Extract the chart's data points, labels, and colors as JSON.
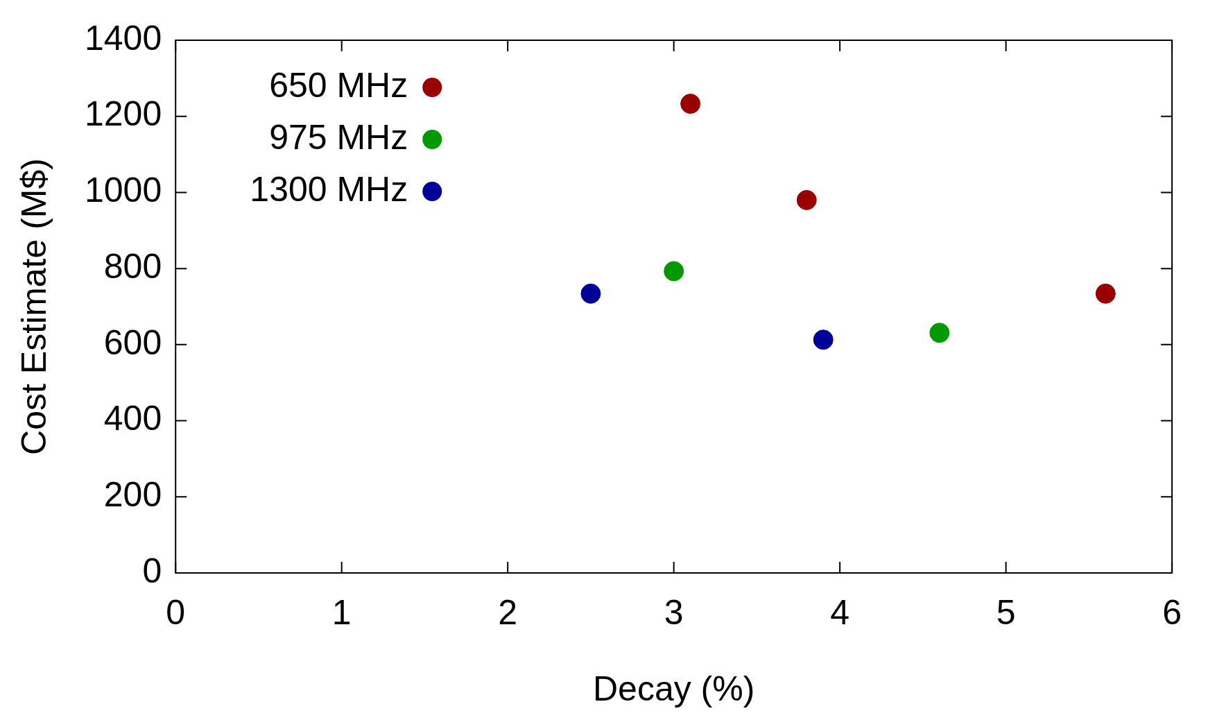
{
  "chart_data": {
    "type": "scatter",
    "xlabel": "Decay (%)",
    "ylabel": "Cost Estimate (M$)",
    "xlim": [
      0,
      6
    ],
    "xticks": [
      0,
      1,
      2,
      3,
      4,
      5,
      6
    ],
    "ylim": [
      0,
      1400
    ],
    "yticks": [
      0,
      200,
      400,
      600,
      800,
      1000,
      1200,
      1400
    ],
    "legend": "top left",
    "marker": "circle",
    "series": [
      {
        "name": "650 MHz",
        "color": "#990000",
        "x": [
          3.1,
          3.8,
          5.6
        ],
        "values": [
          1233,
          980,
          734
        ]
      },
      {
        "name": "975 MHz",
        "color": "#009900",
        "x": [
          3.0,
          4.6
        ],
        "values": [
          793,
          631
        ]
      },
      {
        "name": "1300 MHz",
        "color": "#000099",
        "x": [
          2.5,
          3.9
        ],
        "values": [
          734,
          613
        ]
      }
    ]
  }
}
